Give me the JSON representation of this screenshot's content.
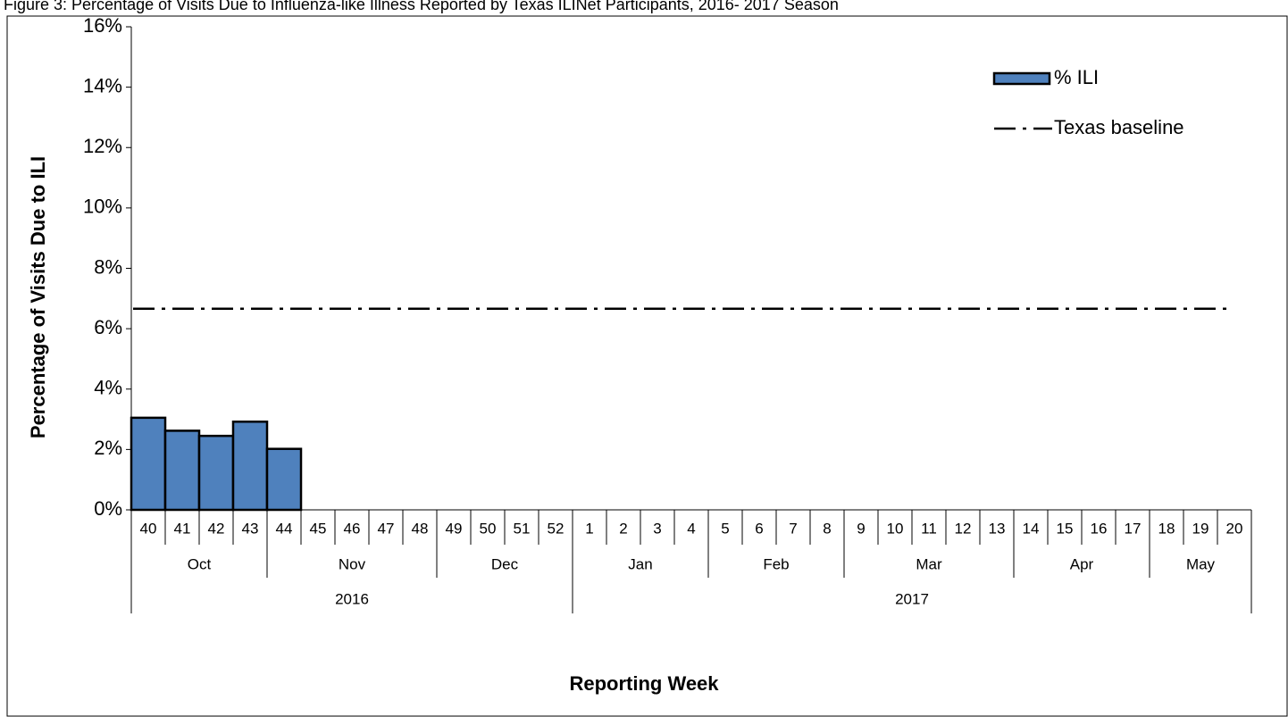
{
  "chart_data": {
    "type": "bar",
    "title": "Figure 3: Percentage of Visits Due to Influenza-like Illness Reported by Texas ILINet Participants, 2016- 2017 Season",
    "y_label": "Percentage of Visits Due to ILI",
    "x_label": "Reporting Week",
    "categories": [
      "40",
      "41",
      "42",
      "43",
      "44",
      "45",
      "46",
      "47",
      "48",
      "49",
      "50",
      "51",
      "52",
      "1",
      "2",
      "3",
      "4",
      "5",
      "6",
      "7",
      "8",
      "9",
      "10",
      "11",
      "12",
      "13",
      "14",
      "15",
      "16",
      "17",
      "18",
      "19",
      "20"
    ],
    "months": [
      "Oct",
      null,
      null,
      null,
      "Nov",
      null,
      null,
      null,
      null,
      "Dec",
      null,
      null,
      null,
      "Jan",
      null,
      null,
      null,
      "Feb",
      null,
      null,
      null,
      "Mar",
      null,
      null,
      null,
      null,
      "Apr",
      null,
      null,
      null,
      "May",
      null,
      null
    ],
    "years": [
      "2016",
      null,
      null,
      null,
      null,
      null,
      null,
      null,
      null,
      null,
      null,
      null,
      null,
      "2017",
      null,
      null,
      null,
      null,
      null,
      null,
      null,
      null,
      null,
      null,
      null,
      null,
      null,
      null,
      null,
      null,
      null,
      null,
      null
    ],
    "series": [
      {
        "name": "% ILI",
        "color": "#4f81bd",
        "values": [
          3.05,
          2.62,
          2.45,
          2.92,
          2.02,
          null,
          null,
          null,
          null,
          null,
          null,
          null,
          null,
          null,
          null,
          null,
          null,
          null,
          null,
          null,
          null,
          null,
          null,
          null,
          null,
          null,
          null,
          null,
          null,
          null,
          null,
          null,
          null
        ]
      }
    ],
    "baseline": {
      "name": "Texas baseline",
      "value": 6.66,
      "color": "#000000"
    },
    "ylim": [
      0,
      16
    ],
    "yticks": [
      {
        "value": 0,
        "label": "0%"
      },
      {
        "value": 2,
        "label": "2%"
      },
      {
        "value": 4,
        "label": "4%"
      },
      {
        "value": 6,
        "label": "6%"
      },
      {
        "value": 8,
        "label": "8%"
      },
      {
        "value": 10,
        "label": "10%"
      },
      {
        "value": 12,
        "label": "12%"
      },
      {
        "value": 14,
        "label": "14%"
      },
      {
        "value": 16,
        "label": "16%"
      }
    ],
    "legend": "top-right"
  }
}
